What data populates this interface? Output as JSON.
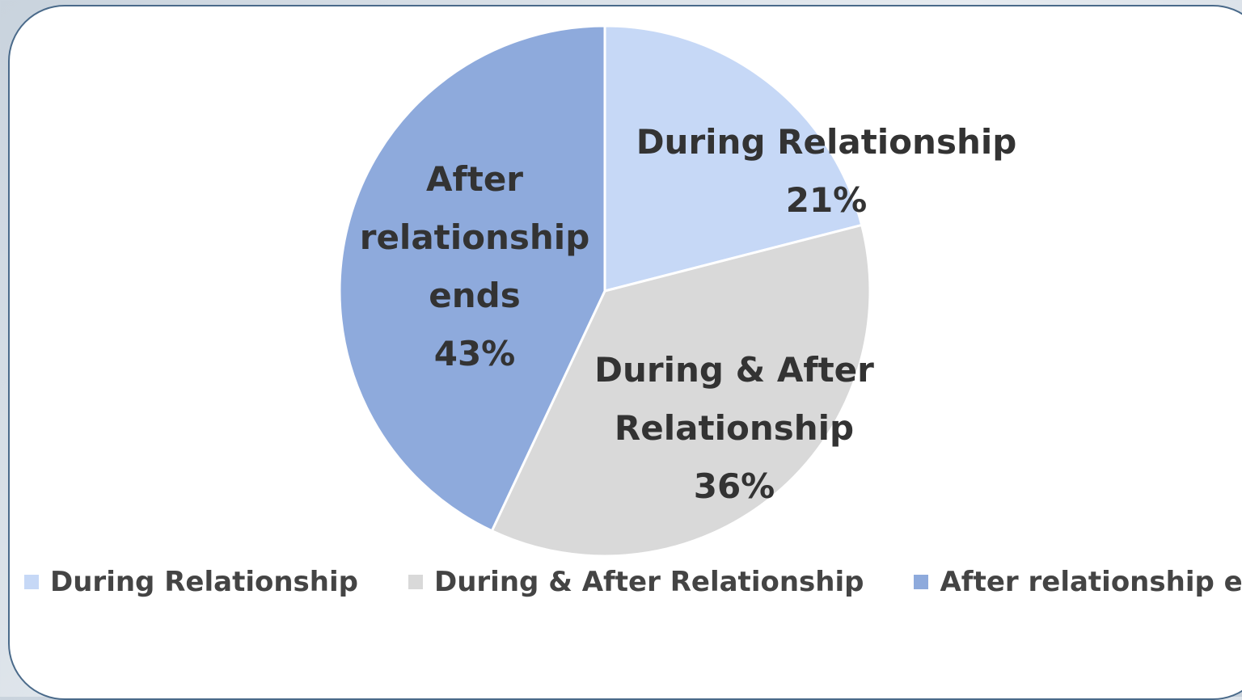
{
  "chart_data": {
    "type": "pie",
    "categories": [
      "During Relationship",
      "During & After Relationship",
      "After relationship ends"
    ],
    "values": [
      21,
      36,
      43
    ],
    "value_labels": [
      "21%",
      "36%",
      "43%"
    ],
    "colors": [
      "#c6d8f6",
      "#d9d9d9",
      "#8eaadc"
    ],
    "legend": "bottom"
  }
}
